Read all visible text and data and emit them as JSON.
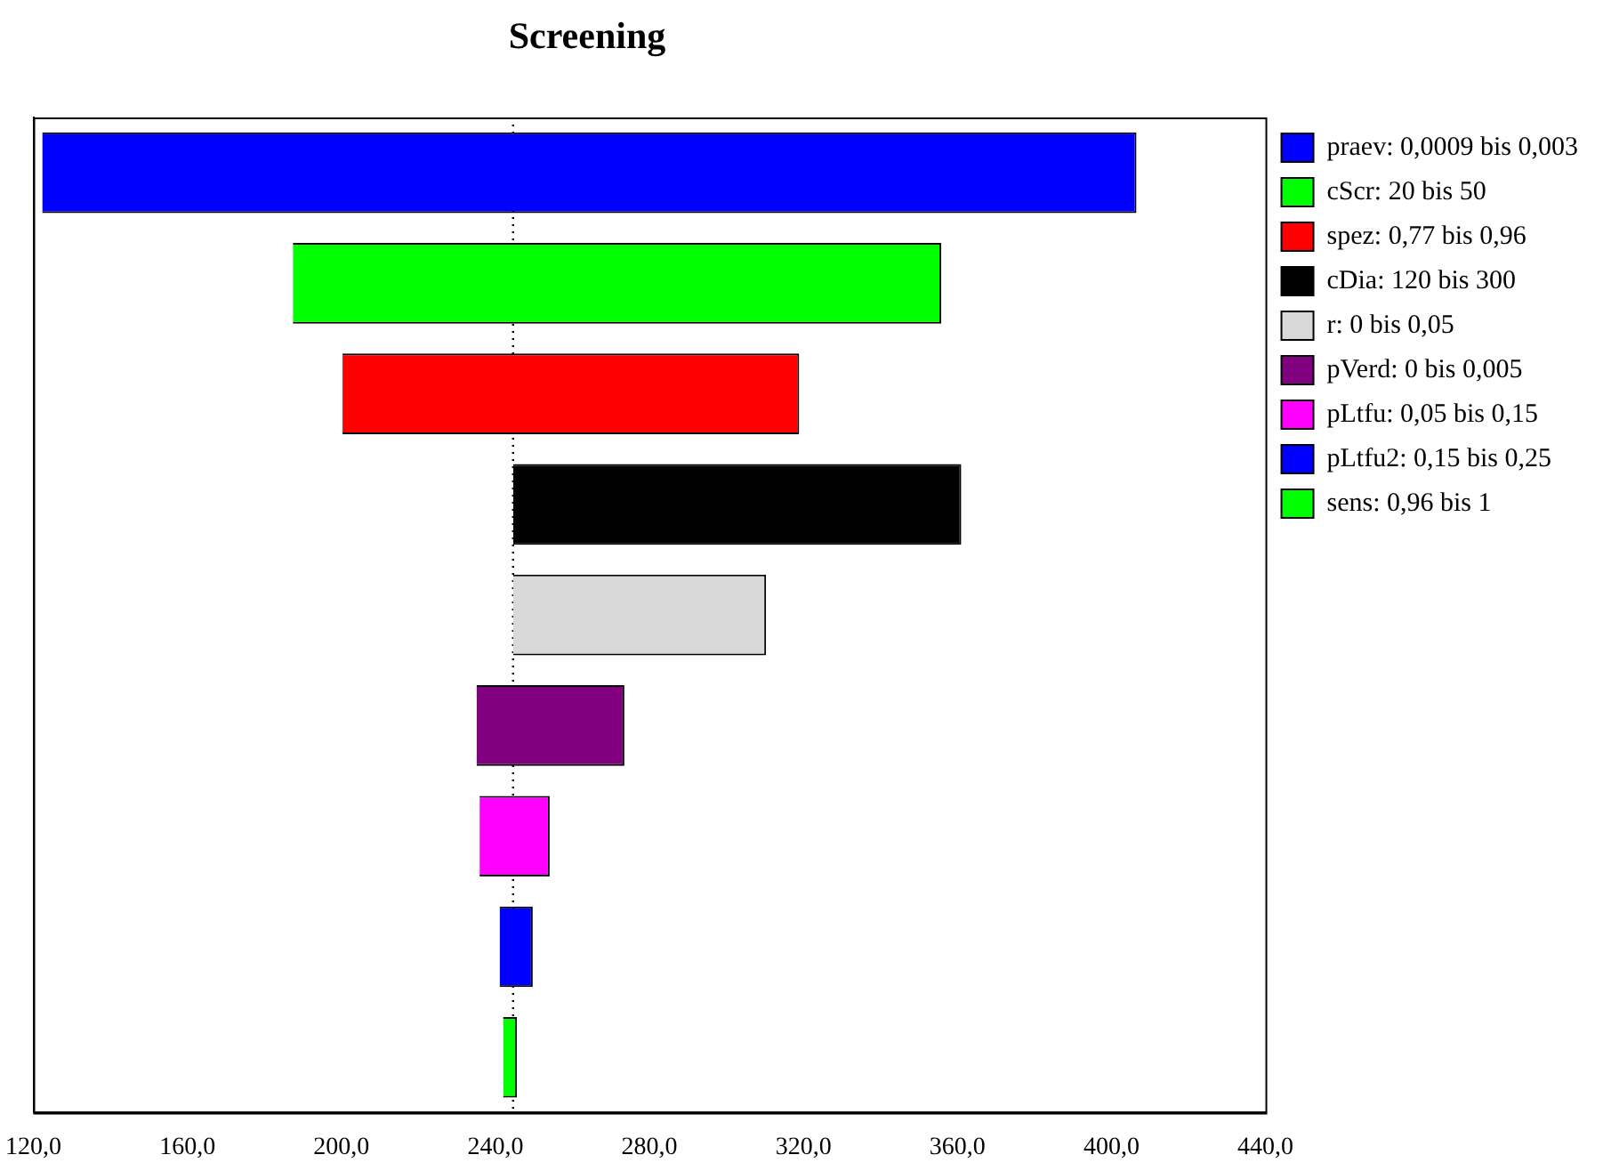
{
  "chart_data": {
    "type": "bar",
    "title": "Screening",
    "orientation": "horizontal",
    "categories": [
      null,
      null,
      null,
      null,
      null,
      null,
      null,
      null,
      null
    ],
    "series": [
      {
        "name": "praev: 0,0009 bis 0,003",
        "color": "#0000ff",
        "values": [
          284.2,
          null,
          null,
          null,
          null,
          null,
          null,
          null,
          null
        ],
        "base": [
          122.3,
          null,
          null,
          null,
          null,
          null,
          null,
          null,
          null
        ]
      },
      {
        "name": "cScr: 20 bis 50",
        "color": "#00ff00",
        "values": [
          null,
          168.4,
          null,
          null,
          null,
          null,
          null,
          null,
          null
        ],
        "base": [
          null,
          187.4,
          null,
          null,
          null,
          null,
          null,
          null,
          null
        ]
      },
      {
        "name": "spez: 0,77 bis 0,96",
        "color": "#ff0000",
        "values": [
          null,
          null,
          118.6,
          null,
          null,
          null,
          null,
          null,
          null
        ],
        "base": [
          null,
          null,
          200.3,
          null,
          null,
          null,
          null,
          null,
          null
        ]
      },
      {
        "name": "cDia: 120 bis 300",
        "color": "#000000",
        "values": [
          null,
          null,
          null,
          116.4,
          null,
          null,
          null,
          null,
          null
        ],
        "base": [
          null,
          null,
          null,
          244.6,
          null,
          null,
          null,
          null,
          null
        ]
      },
      {
        "name": "r: 0 bis 0,05",
        "color": "#d9d9d9",
        "values": [
          null,
          null,
          null,
          null,
          65.7,
          null,
          null,
          null,
          null
        ],
        "base": [
          null,
          null,
          null,
          null,
          244.6,
          null,
          null,
          null,
          null
        ]
      },
      {
        "name": "pVerd: 0 bis 0,005",
        "color": "#800080",
        "values": [
          null,
          null,
          null,
          null,
          null,
          38.4,
          null,
          null,
          null
        ],
        "base": [
          null,
          null,
          null,
          null,
          null,
          235.1,
          null,
          null,
          null
        ]
      },
      {
        "name": "pLtfu: 0,05 bis 0,15",
        "color": "#ff00ff",
        "values": [
          null,
          null,
          null,
          null,
          null,
          null,
          18.2,
          null,
          null
        ],
        "base": [
          null,
          null,
          null,
          null,
          null,
          null,
          235.9,
          null,
          null
        ]
      },
      {
        "name": "pLtfu2: 0,15 bis 0,25",
        "color": "#0000ff",
        "values": [
          null,
          null,
          null,
          null,
          null,
          null,
          null,
          8.6,
          null
        ],
        "base": [
          null,
          null,
          null,
          null,
          null,
          null,
          null,
          241.1,
          null
        ]
      },
      {
        "name": "sens: 0,96 bis 1",
        "color": "#00ff00",
        "values": [
          null,
          null,
          null,
          null,
          null,
          null,
          null,
          null,
          3.6
        ],
        "base": [
          null,
          null,
          null,
          null,
          null,
          null,
          null,
          null,
          242.0
        ]
      }
    ],
    "xlim": [
      120,
      440
    ],
    "xticks": [
      {
        "value": 120,
        "label": "120,0"
      },
      {
        "value": 160,
        "label": "160,0"
      },
      {
        "value": 200,
        "label": "200,0"
      },
      {
        "value": 240,
        "label": "240,0"
      },
      {
        "value": 280,
        "label": "280,0"
      },
      {
        "value": 320,
        "label": "320,0"
      },
      {
        "value": 360,
        "label": "360,0"
      },
      {
        "value": 400,
        "label": "400,0"
      },
      {
        "value": 440,
        "label": "440,0"
      }
    ],
    "ref_lines": [
      {
        "axis": "x",
        "value": 244.6,
        "color": "#000000",
        "line_style": "dotted"
      }
    ],
    "tick_labels": "x",
    "grid": false,
    "legend": "top right"
  }
}
